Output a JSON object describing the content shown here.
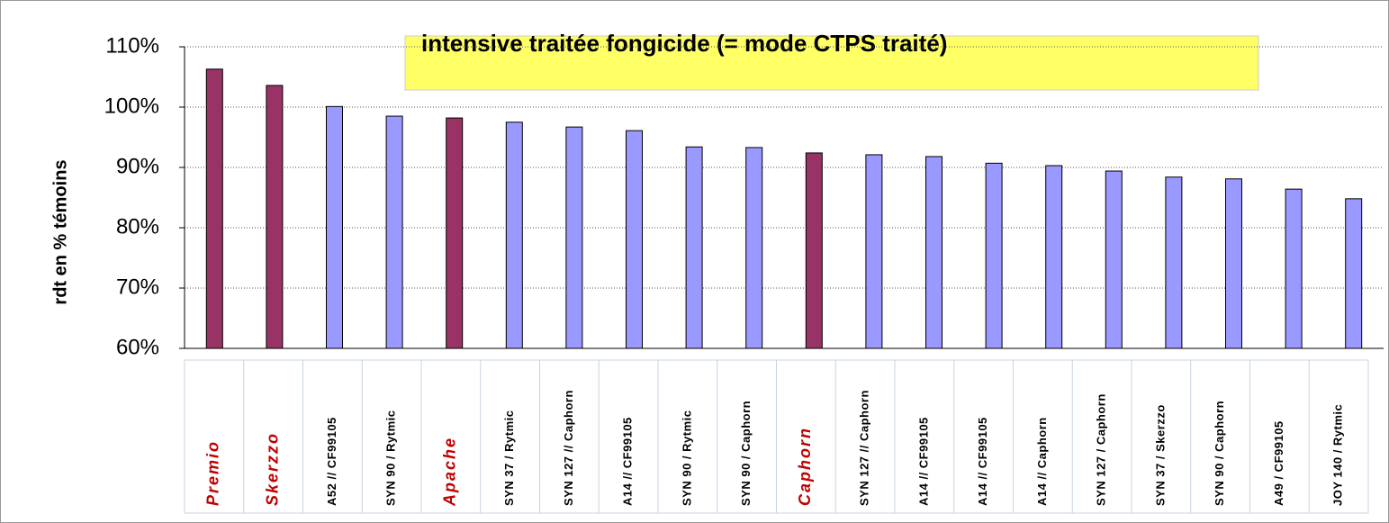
{
  "chart_data": {
    "type": "bar",
    "title": "intensive traitée fongicide  (= mode CTPS traité)",
    "y_label": "rdt en % témoins",
    "categories": [
      "Premio",
      "Skerzzo",
      "A52 // CF99105",
      "SYN 90 / Rytmic",
      "Apache",
      "SYN 37 / Rytmic",
      "SYN 127 // Caphorn",
      "A14 // CF99105",
      "SYN 90 / Rytmic",
      "SYN 90 / Caphorn",
      "Caphorn",
      "SYN 127 // Caphorn",
      "A14 // CF99105",
      "A14 // CF99105",
      "A14 // Caphorn",
      "SYN 127 / Caphorn",
      "SYN 37 / Skerzzo",
      "SYN 90 / Caphorn",
      "A49 / CF99105",
      "JOY 140 / Rytmic"
    ],
    "values": [
      106.3,
      103.6,
      100.1,
      98.5,
      98.2,
      97.5,
      96.7,
      96.1,
      93.4,
      93.3,
      92.4,
      92.1,
      91.8,
      90.7,
      90.3,
      89.4,
      88.4,
      88.1,
      86.4,
      84.8
    ],
    "colors": [
      "#993366",
      "#993366",
      "#9999ff",
      "#9999ff",
      "#993366",
      "#9999ff",
      "#9999ff",
      "#9999ff",
      "#9999ff",
      "#9999ff",
      "#993366",
      "#9999ff",
      "#9999ff",
      "#9999ff",
      "#9999ff",
      "#9999ff",
      "#9999ff",
      "#9999ff",
      "#9999ff",
      "#9999ff"
    ],
    "label_colors": [
      "#c00000",
      "#c00000",
      "#000000",
      "#000000",
      "#c00000",
      "#000000",
      "#000000",
      "#000000",
      "#000000",
      "#000000",
      "#c00000",
      "#000000",
      "#000000",
      "#000000",
      "#000000",
      "#000000",
      "#000000",
      "#000000",
      "#000000",
      "#000000"
    ],
    "ylim": [
      60,
      110
    ],
    "yticks": [
      {
        "value": 60,
        "label": "60%"
      },
      {
        "value": 70,
        "label": "70%"
      },
      {
        "value": 80,
        "label": "80%"
      },
      {
        "value": 90,
        "label": "90%"
      },
      {
        "value": 100,
        "label": "100%"
      },
      {
        "value": 110,
        "label": "110%"
      }
    ],
    "grid": true
  }
}
